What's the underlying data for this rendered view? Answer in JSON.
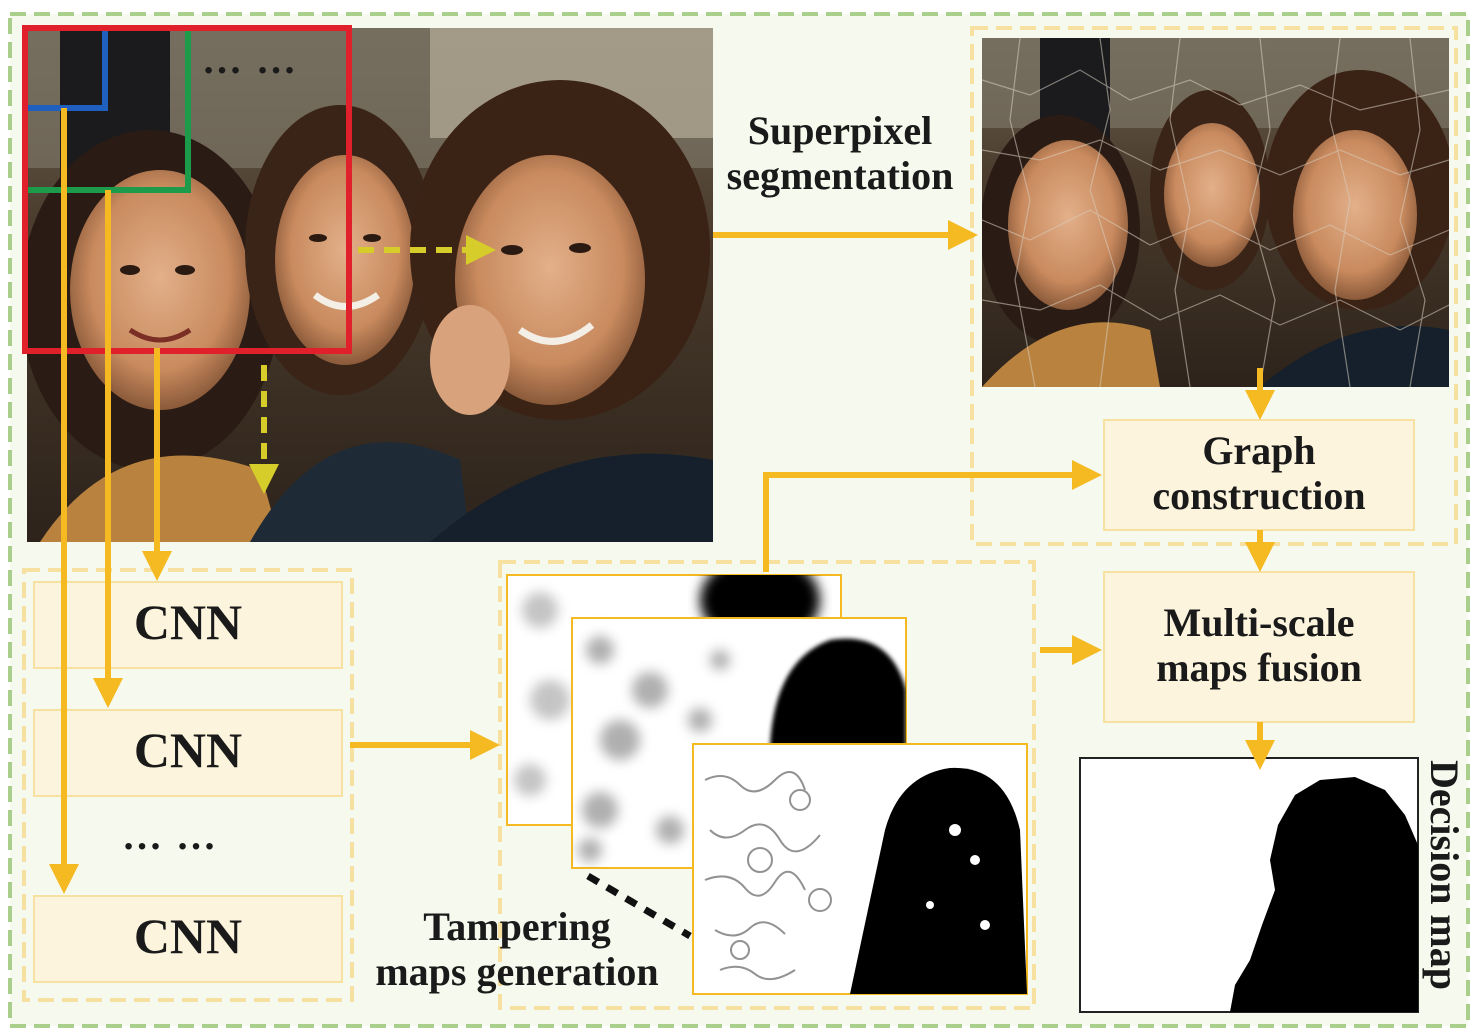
{
  "labels": {
    "superpixel": "Superpixel\nsegmentation",
    "graph": "Graph\nconstruction",
    "fusion": "Multi-scale\nmaps fusion",
    "tampering": "Tampering\nmaps generation",
    "decision": "Decision map"
  },
  "cnn_blocks": [
    "CNN",
    "CNN",
    "CNN"
  ],
  "ellipsis": "… …",
  "colors": {
    "arrow": "#f5b922",
    "dashed_arrow": "#d6cc2a",
    "region_border": "#a9cf8a",
    "inner_border": "#f7e1a0",
    "box_fill": "#fcf4dc",
    "window_blue": "#1f5fbf",
    "window_green": "#1c9c4a",
    "window_red": "#e0212b"
  }
}
